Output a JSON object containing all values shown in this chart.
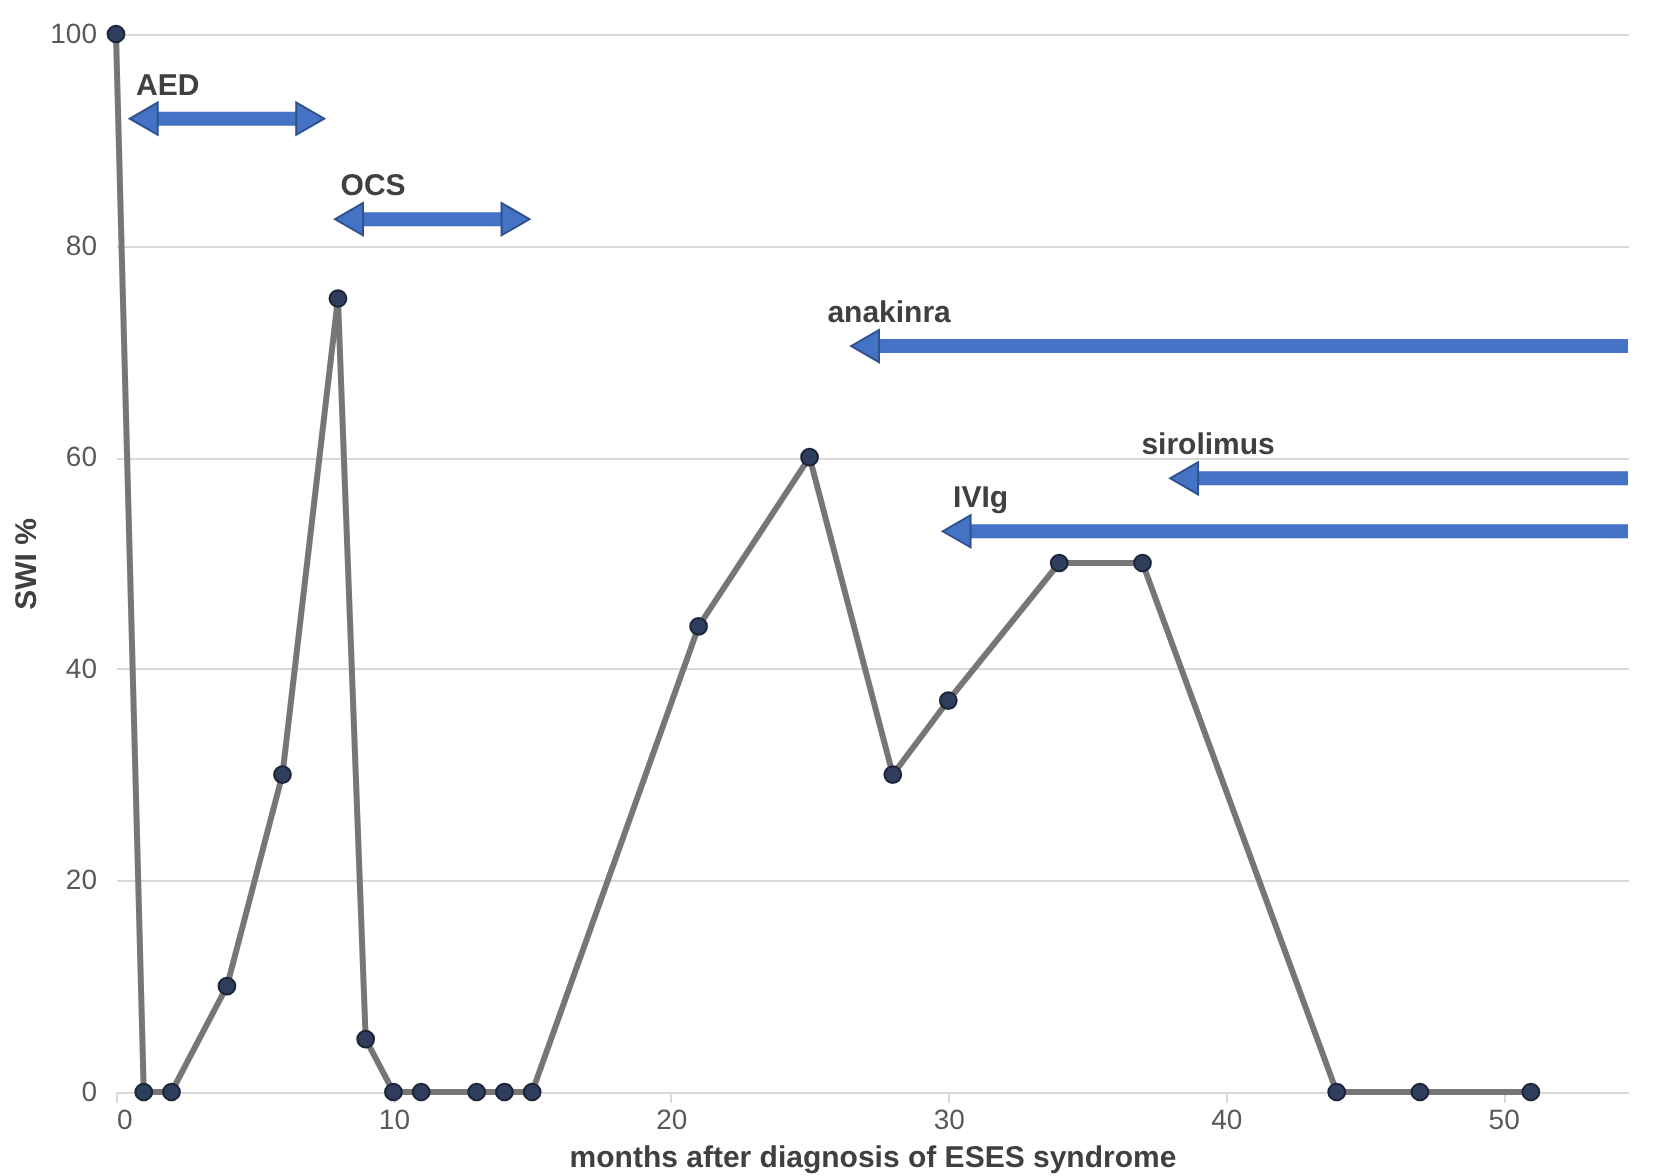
{
  "chart_data": {
    "type": "line",
    "xlabel": "months after diagnosis of ESES syndrome",
    "ylabel": "SWI %",
    "xlim": [
      0,
      54.5
    ],
    "ylim": [
      0,
      100
    ],
    "xticks": [
      0,
      10,
      20,
      30,
      40,
      50
    ],
    "yticks": [
      0,
      20,
      40,
      60,
      80,
      100
    ],
    "grid": "y",
    "series": [
      {
        "color": "#767676",
        "marker": "circle",
        "x": [
          0,
          1,
          2,
          4,
          6,
          8,
          9,
          10,
          11,
          13,
          14,
          15,
          21,
          25,
          28,
          30,
          34,
          37,
          44,
          47,
          51
        ],
        "values": [
          100,
          0,
          0,
          10,
          30,
          75,
          5,
          0,
          0,
          0,
          0,
          0,
          44,
          60,
          30,
          37,
          50,
          50,
          0,
          0,
          0
        ]
      },
      {
        "name": "AED",
        "color": "#4472c4",
        "marker": "triangle",
        "x": [
          1,
          7
        ],
        "values": [
          92,
          92
        ]
      },
      {
        "name": "OCS",
        "color": "#4472c4",
        "marker": "triangle",
        "x": [
          8.4,
          14.4
        ],
        "values": [
          82.5,
          82.5
        ]
      },
      {
        "name": "anakinra",
        "color": "#4472c4",
        "marker": "triangle",
        "x": [
          27,
          54.5
        ],
        "values": [
          70.5,
          70.5
        ]
      },
      {
        "name": "sirolimus",
        "color": "#4472c4",
        "marker": "triangle",
        "x": [
          38.5,
          54.5
        ],
        "values": [
          58,
          58
        ]
      },
      {
        "name": "IVIg",
        "color": "#4472c4",
        "marker": "triangle",
        "x": [
          30.3,
          54.5
        ],
        "values": [
          53,
          53
        ]
      }
    ]
  }
}
